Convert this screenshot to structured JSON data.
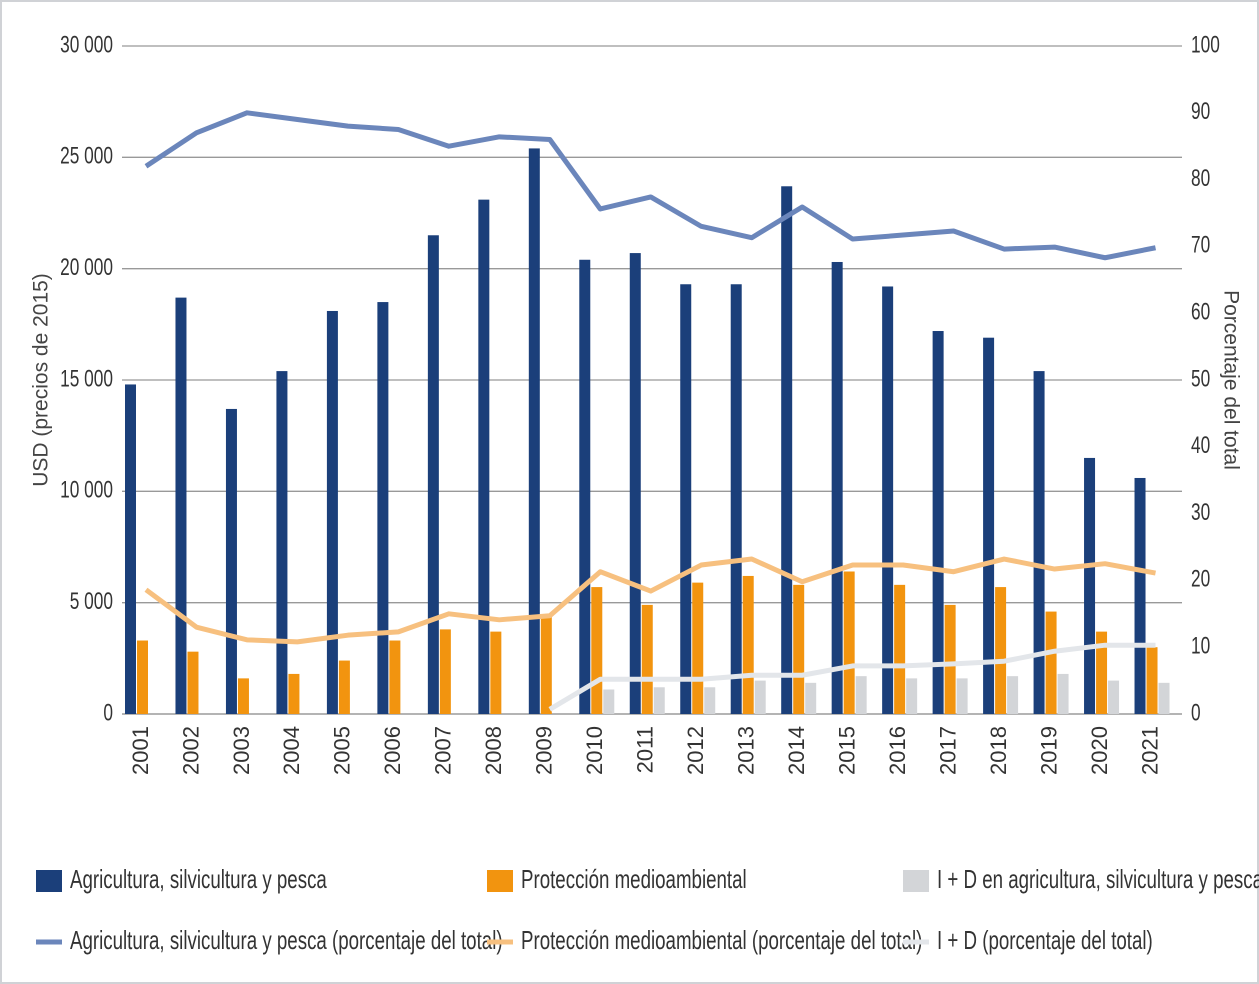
{
  "chart_data": {
    "type": "bar",
    "categories": [
      "2001",
      "2002",
      "2003",
      "2004",
      "2005",
      "2006",
      "2007",
      "2008",
      "2009",
      "2010",
      "2011",
      "2012",
      "2013",
      "2014",
      "2015",
      "2016",
      "2017",
      "2018",
      "2019",
      "2020",
      "2021"
    ],
    "y_label": "USD (precios de 2015)",
    "y2_label": "Porcentaje del total",
    "ylim": [
      0,
      30000
    ],
    "yticks": [
      0,
      {
        "value": 5000,
        "label": "5 000"
      },
      {
        "value": 10000,
        "label": "10 000"
      },
      {
        "value": 15000,
        "label": "15 000"
      },
      {
        "value": 20000,
        "label": "20 000"
      },
      {
        "value": 25000,
        "label": "25 000"
      },
      {
        "value": 30000,
        "label": "30 000"
      }
    ],
    "y2lim": [
      0,
      100
    ],
    "y2ticks": [
      0,
      10,
      20,
      30,
      40,
      50,
      60,
      70,
      80,
      90,
      100
    ],
    "grid": true,
    "legend": "bottom",
    "series": [
      {
        "name": "Agricultura, silvicultura y pesca",
        "type": "bar",
        "color": "#1b3f7a",
        "values": [
          14800,
          18700,
          13700,
          15400,
          18100,
          18500,
          21500,
          23100,
          25400,
          20400,
          20700,
          19300,
          19300,
          23700,
          20300,
          19200,
          17200,
          16900,
          15400,
          11500,
          10600
        ]
      },
      {
        "name": "Protección medioambiental",
        "type": "bar",
        "color": "#f2940f",
        "values": [
          3300,
          2800,
          1600,
          1800,
          2400,
          3300,
          3800,
          3700,
          4400,
          5700,
          4900,
          5900,
          6200,
          5800,
          6400,
          5800,
          4900,
          5700,
          4600,
          3700,
          3000
        ]
      },
      {
        "name": "I + D en agricultura, silvicultura y pesca",
        "type": "bar",
        "color": "#d3d5d8",
        "values": [
          null,
          null,
          null,
          null,
          null,
          null,
          null,
          null,
          null,
          1100,
          1200,
          1200,
          1500,
          1400,
          1700,
          1600,
          1600,
          1700,
          1800,
          1500,
          1400
        ]
      },
      {
        "name": "Agricultura, silvicultura y pesca (porcentaje del total)",
        "type": "line",
        "axis": "y2",
        "color": "#6b86bb",
        "values": [
          82,
          87,
          90,
          89,
          88,
          87.5,
          85,
          86.4,
          86,
          75.6,
          77.4,
          73,
          71.3,
          75.9,
          71.1,
          71.7,
          72.3,
          69.6,
          69.9,
          68.3,
          69.8
        ]
      },
      {
        "name": "Protección medioambiental (porcentaje del total)",
        "type": "line",
        "axis": "y2",
        "color": "#f7c07f",
        "values": [
          18.6,
          13,
          11.1,
          10.8,
          11.8,
          12.3,
          15,
          14.1,
          14.7,
          21.3,
          18.4,
          22.3,
          23.2,
          19.8,
          22.3,
          22.3,
          21.3,
          23.2,
          21.7,
          22.5,
          21.1
        ]
      },
      {
        "name": "I + D  (porcentaje del total)",
        "type": "line",
        "axis": "y2",
        "color": "#e3e6ea",
        "values": [
          null,
          null,
          null,
          null,
          null,
          null,
          null,
          null,
          0.7,
          5.2,
          5.2,
          5.2,
          5.8,
          5.8,
          7.2,
          7.2,
          7.5,
          7.9,
          9.4,
          10.3,
          10.3
        ]
      }
    ]
  }
}
